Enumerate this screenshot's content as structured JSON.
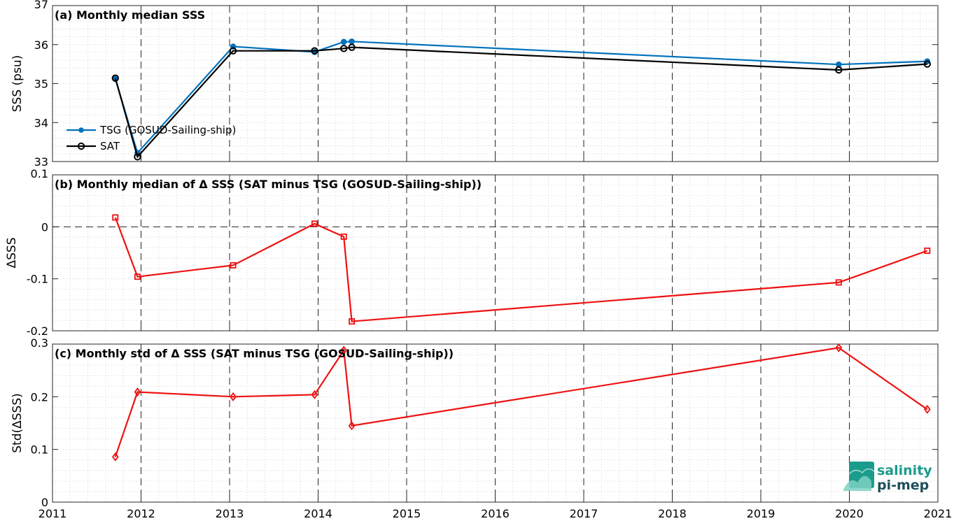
{
  "colors": {
    "tsg": "#0072BD",
    "sat": "#000000",
    "delta": "#ee1111",
    "logo_teal": "#1a9c8c",
    "logo_dark": "#1c4f5c"
  },
  "logo": {
    "line1": "salinity",
    "line2": "pi-mep"
  },
  "chart_data": [
    {
      "type": "line",
      "title": "(a) Monthly median SSS",
      "ylabel": "SSS (psu)",
      "xlim": [
        2011,
        2021
      ],
      "ylim": [
        33,
        37
      ],
      "yticks": [
        33,
        34,
        35,
        36,
        37
      ],
      "grid": true,
      "legend_position": "left",
      "series": [
        {
          "name": "TSG (GOSUD-Sailing-ship)",
          "marker": "dot",
          "color": "#0072BD",
          "x": [
            2011.71,
            2011.96,
            2013.04,
            2013.96,
            2014.29,
            2014.38,
            2019.88,
            2020.88
          ],
          "y": [
            35.12,
            33.22,
            35.95,
            35.81,
            36.07,
            36.08,
            35.49,
            35.57
          ]
        },
        {
          "name": "SAT",
          "marker": "circle",
          "color": "#000000",
          "x": [
            2011.71,
            2011.96,
            2013.04,
            2013.96,
            2014.29,
            2014.38,
            2019.88,
            2020.88
          ],
          "y": [
            35.14,
            33.12,
            35.84,
            35.84,
            35.9,
            35.93,
            35.35,
            35.5
          ]
        }
      ]
    },
    {
      "type": "line",
      "title": "(b) Monthly median of Δ SSS (SAT minus TSG (GOSUD-Sailing-ship))",
      "ylabel": "ΔSSS",
      "xlim": [
        2011,
        2021
      ],
      "ylim": [
        -0.2,
        0.1
      ],
      "yticks": [
        -0.2,
        -0.1,
        0,
        0.1
      ],
      "ytick_labels": [
        "-0.2",
        "-0.1",
        "0",
        "0.1"
      ],
      "grid": true,
      "series": [
        {
          "marker": "square",
          "color": "#ee1111",
          "x": [
            2011.71,
            2011.96,
            2013.04,
            2013.96,
            2014.29,
            2014.38,
            2019.88,
            2020.88
          ],
          "y": [
            0.018,
            -0.096,
            -0.074,
            0.006,
            -0.019,
            -0.182,
            -0.107,
            -0.046
          ]
        }
      ]
    },
    {
      "type": "line",
      "title": "(c) Monthly std of Δ SSS (SAT minus TSG (GOSUD-Sailing-ship))",
      "ylabel": "Std(ΔSSS)",
      "xlabel": "",
      "xlim": [
        2011,
        2021
      ],
      "ylim": [
        0,
        0.3
      ],
      "yticks": [
        0,
        0.1,
        0.2,
        0.3
      ],
      "ytick_labels": [
        "0",
        "0.1",
        "0.2",
        "0.3"
      ],
      "xticks": [
        2011,
        2012,
        2013,
        2014,
        2015,
        2016,
        2017,
        2018,
        2019,
        2020,
        2021
      ],
      "grid": true,
      "series": [
        {
          "marker": "diamond",
          "color": "#ee1111",
          "x": [
            2011.71,
            2011.96,
            2013.04,
            2013.96,
            2014.29,
            2014.38,
            2019.88,
            2020.88
          ],
          "y": [
            0.086,
            0.209,
            0.2,
            0.204,
            0.288,
            0.145,
            0.293,
            0.176
          ]
        }
      ]
    }
  ]
}
